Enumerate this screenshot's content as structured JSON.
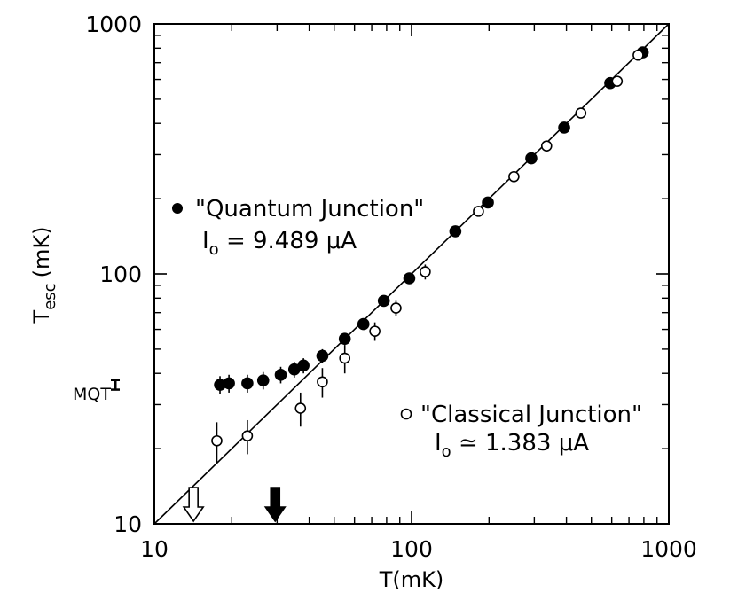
{
  "chart_data": {
    "type": "scatter",
    "title": "",
    "x_scale": "log",
    "y_scale": "log",
    "xlim": [
      10,
      1000
    ],
    "ylim": [
      10,
      1000
    ],
    "xlabel": {
      "main": "T",
      "unit": "(mK)"
    },
    "ylabel": {
      "main": "T",
      "sub": "esc",
      "unit": "(mK)"
    },
    "x_ticks": [
      {
        "value": 10,
        "label": "10"
      },
      {
        "value": 100,
        "label": "100"
      },
      {
        "value": 1000,
        "label": "1000"
      }
    ],
    "y_ticks": [
      {
        "value": 10,
        "label": "10"
      },
      {
        "value": 100,
        "label": "100"
      },
      {
        "value": 1000,
        "label": "1000"
      }
    ],
    "reference_line": {
      "from": [
        10,
        10
      ],
      "to": [
        1000,
        1000
      ],
      "description": "T_esc = T"
    },
    "series": [
      {
        "name": "\"Quantum Junction\"",
        "marker": "filled-circle",
        "legend_line2": {
          "symbol": "I",
          "sub": "o",
          "value": " = 9.489 μA"
        },
        "points": [
          {
            "x": 18,
            "y": 36,
            "err": 3
          },
          {
            "x": 19.5,
            "y": 36.5,
            "err": 3
          },
          {
            "x": 23,
            "y": 36.5,
            "err": 3
          },
          {
            "x": 26.5,
            "y": 37.5,
            "err": 3
          },
          {
            "x": 31,
            "y": 39.5,
            "err": 3
          },
          {
            "x": 35,
            "y": 41.5,
            "err": 3
          },
          {
            "x": 38,
            "y": 43,
            "err": 3
          },
          {
            "x": 45,
            "y": 47,
            "err": 3
          },
          {
            "x": 55,
            "y": 55,
            "err": 3
          },
          {
            "x": 65,
            "y": 63,
            "err": 3
          },
          {
            "x": 78,
            "y": 78,
            "err": 4
          },
          {
            "x": 98,
            "y": 96,
            "err": 4
          },
          {
            "x": 148,
            "y": 148,
            "err": 0
          },
          {
            "x": 198,
            "y": 193,
            "err": 0
          },
          {
            "x": 292,
            "y": 290,
            "err": 0
          },
          {
            "x": 392,
            "y": 385,
            "err": 0
          },
          {
            "x": 592,
            "y": 580,
            "err": 0
          },
          {
            "x": 792,
            "y": 770,
            "err": 0
          }
        ]
      },
      {
        "name": "\"Classical Junction\"",
        "marker": "open-circle",
        "legend_line2": {
          "symbol": "I",
          "sub": "o",
          "value": " ≃ 1.383 μA"
        },
        "points": [
          {
            "x": 17.5,
            "y": 21.5,
            "err": 4
          },
          {
            "x": 23,
            "y": 22.5,
            "err": 3.5
          },
          {
            "x": 37,
            "y": 29,
            "err": 4.5
          },
          {
            "x": 45,
            "y": 37,
            "err": 5
          },
          {
            "x": 55,
            "y": 46,
            "err": 6
          },
          {
            "x": 72,
            "y": 59,
            "err": 5
          },
          {
            "x": 87,
            "y": 73,
            "err": 5
          },
          {
            "x": 113,
            "y": 102,
            "err": 7
          },
          {
            "x": 182,
            "y": 178,
            "err": 0
          },
          {
            "x": 250,
            "y": 245,
            "err": 0
          },
          {
            "x": 335,
            "y": 325,
            "err": 0
          },
          {
            "x": 455,
            "y": 440,
            "err": 0
          },
          {
            "x": 630,
            "y": 590,
            "err": 0
          },
          {
            "x": 760,
            "y": 750,
            "err": 0
          }
        ]
      }
    ],
    "annotations": [
      {
        "id": "mqt",
        "text": "MQT",
        "y": 36,
        "y_low": 35,
        "y_high": 37,
        "glyph": "error-bar-I"
      },
      {
        "id": "open-arrow",
        "x": 14.2,
        "style": "open",
        "direction": "down"
      },
      {
        "id": "filled-arrow",
        "x": 29.5,
        "style": "filled",
        "direction": "down"
      }
    ],
    "grid": false,
    "legend_placement": "inline-annotations"
  }
}
